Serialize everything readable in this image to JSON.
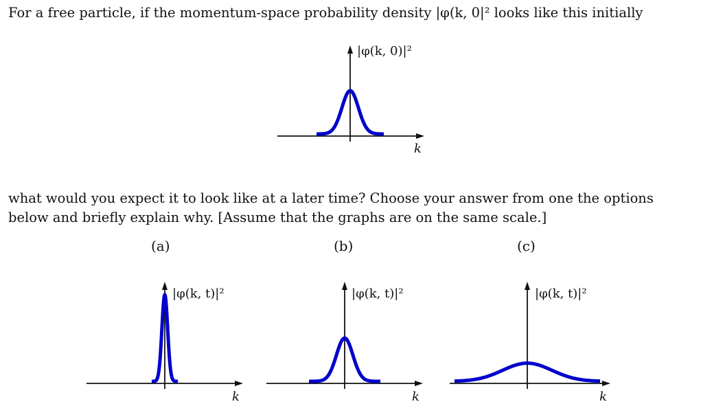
{
  "intro_text": "For a free particle, if the momentum-space probability density |φ(k, 0|² looks like this initially",
  "question_line1": "what would you expect it to look like at a later time? Choose your answer from one the options",
  "question_line2": "below and briefly explain why. [Assume that the graphs are on the same scale.]",
  "curve_color": "#0000cc",
  "initial_graph": {
    "ylabel": "|φ(k, 0)|²",
    "xlabel": "k",
    "relative_height": 1.0,
    "relative_width": 1.0
  },
  "options": [
    {
      "label": "(a)",
      "ylabel": "|φ(k, t)|²",
      "xlabel": "k",
      "relative_height": 2.0,
      "relative_width": 0.35
    },
    {
      "label": "(b)",
      "ylabel": "|φ(k, t)|²",
      "xlabel": "k",
      "relative_height": 1.0,
      "relative_width": 1.0
    },
    {
      "label": "(c)",
      "ylabel": "|φ(k, t)|²",
      "xlabel": "k",
      "relative_height": 0.42,
      "relative_width": 3.0
    }
  ]
}
